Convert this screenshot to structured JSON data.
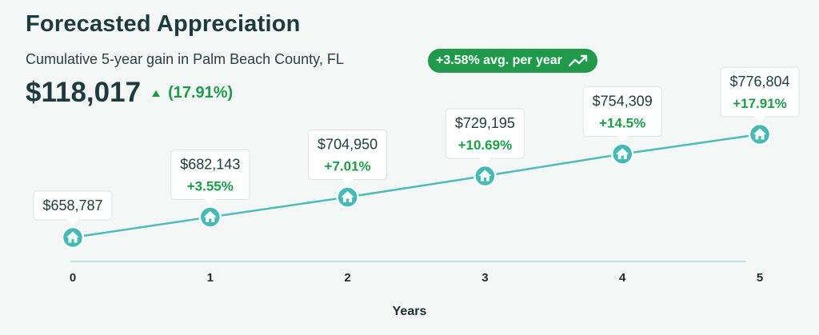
{
  "header": {
    "title": "Forecasted Appreciation",
    "subtitle": "Cumulative 5-year gain in Palm Beach County, FL",
    "avg_badge": "+3.58% avg. per year",
    "total_gain": "$118,017",
    "total_pct": "(17.91%)"
  },
  "chart_data": {
    "type": "line",
    "x": [
      0,
      1,
      2,
      3,
      4,
      5
    ],
    "values": [
      658787,
      682143,
      704950,
      729195,
      754309,
      776804
    ],
    "value_labels": [
      "$658,787",
      "$682,143",
      "$704,950",
      "$729,195",
      "$754,309",
      "$776,804"
    ],
    "change_labels": [
      "",
      "+3.55%",
      "+7.01%",
      "+10.69%",
      "+14.5%",
      "+17.91%"
    ],
    "xlabel": "Years",
    "ylabel": "",
    "marker_icon": "house-icon",
    "grid": false,
    "colors": {
      "line": "#4fbcb8",
      "marker": "#45b9b4",
      "baseline": "#a9dcd9",
      "positive": "#1f9a4b"
    }
  },
  "colors": {
    "accent_green": "#1f9a4b",
    "title": "#1d3b3f",
    "background": "#f5f6f6"
  }
}
